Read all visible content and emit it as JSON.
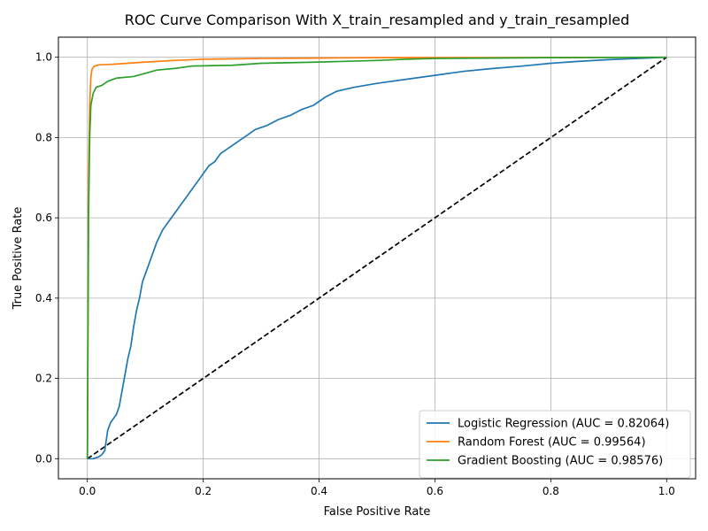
{
  "chart_data": {
    "type": "line",
    "title": "ROC Curve Comparison With X_train_resampled and y_train_resampled",
    "xlabel": "False Positive Rate",
    "ylabel": "True Positive Rate",
    "xlim": [
      -0.05,
      1.05
    ],
    "ylim": [
      -0.05,
      1.05
    ],
    "xticks": [
      0.0,
      0.2,
      0.4,
      0.6,
      0.8,
      1.0
    ],
    "yticks": [
      0.0,
      0.2,
      0.4,
      0.6,
      0.8,
      1.0
    ],
    "xtick_labels": [
      "0.0",
      "0.2",
      "0.4",
      "0.6",
      "0.8",
      "1.0"
    ],
    "ytick_labels": [
      "0.0",
      "0.2",
      "0.4",
      "0.6",
      "0.8",
      "1.0"
    ],
    "grid": true,
    "legend_position": "lower-right",
    "series": [
      {
        "name": "Logistic Regression (AUC = 0.82064)",
        "color": "#1f77b4",
        "points": [
          [
            0.0,
            0.0
          ],
          [
            0.01,
            0.0
          ],
          [
            0.02,
            0.005
          ],
          [
            0.025,
            0.01
          ],
          [
            0.03,
            0.02
          ],
          [
            0.032,
            0.04
          ],
          [
            0.035,
            0.07
          ],
          [
            0.04,
            0.09
          ],
          [
            0.045,
            0.1
          ],
          [
            0.05,
            0.11
          ],
          [
            0.055,
            0.13
          ],
          [
            0.06,
            0.17
          ],
          [
            0.065,
            0.21
          ],
          [
            0.07,
            0.25
          ],
          [
            0.075,
            0.28
          ],
          [
            0.08,
            0.33
          ],
          [
            0.085,
            0.37
          ],
          [
            0.09,
            0.4
          ],
          [
            0.095,
            0.44
          ],
          [
            0.1,
            0.46
          ],
          [
            0.105,
            0.48
          ],
          [
            0.11,
            0.5
          ],
          [
            0.115,
            0.52
          ],
          [
            0.12,
            0.54
          ],
          [
            0.13,
            0.57
          ],
          [
            0.14,
            0.59
          ],
          [
            0.15,
            0.61
          ],
          [
            0.16,
            0.63
          ],
          [
            0.17,
            0.65
          ],
          [
            0.18,
            0.67
          ],
          [
            0.19,
            0.69
          ],
          [
            0.2,
            0.71
          ],
          [
            0.21,
            0.73
          ],
          [
            0.22,
            0.74
          ],
          [
            0.23,
            0.76
          ],
          [
            0.25,
            0.78
          ],
          [
            0.27,
            0.8
          ],
          [
            0.29,
            0.82
          ],
          [
            0.31,
            0.83
          ],
          [
            0.33,
            0.845
          ],
          [
            0.35,
            0.855
          ],
          [
            0.37,
            0.87
          ],
          [
            0.39,
            0.88
          ],
          [
            0.41,
            0.9
          ],
          [
            0.43,
            0.915
          ],
          [
            0.46,
            0.925
          ],
          [
            0.5,
            0.935
          ],
          [
            0.55,
            0.945
          ],
          [
            0.6,
            0.955
          ],
          [
            0.65,
            0.965
          ],
          [
            0.7,
            0.972
          ],
          [
            0.75,
            0.978
          ],
          [
            0.8,
            0.985
          ],
          [
            0.85,
            0.99
          ],
          [
            0.9,
            0.994
          ],
          [
            0.95,
            0.997
          ],
          [
            1.0,
            1.0
          ]
        ]
      },
      {
        "name": "Random Forest (AUC = 0.99564)",
        "color": "#ff7f0e",
        "points": [
          [
            0.0,
            0.0
          ],
          [
            0.002,
            0.7
          ],
          [
            0.004,
            0.88
          ],
          [
            0.006,
            0.95
          ],
          [
            0.008,
            0.97
          ],
          [
            0.012,
            0.978
          ],
          [
            0.02,
            0.981
          ],
          [
            0.05,
            0.983
          ],
          [
            0.1,
            0.988
          ],
          [
            0.15,
            0.992
          ],
          [
            0.2,
            0.995
          ],
          [
            0.3,
            0.997
          ],
          [
            0.4,
            0.998
          ],
          [
            0.5,
            0.999
          ],
          [
            0.7,
            0.999
          ],
          [
            1.0,
            1.0
          ]
        ]
      },
      {
        "name": "Gradient Boosting (AUC = 0.98576)",
        "color": "#2ca02c",
        "points": [
          [
            0.0,
            0.0
          ],
          [
            0.002,
            0.6
          ],
          [
            0.004,
            0.8
          ],
          [
            0.006,
            0.88
          ],
          [
            0.01,
            0.91
          ],
          [
            0.015,
            0.925
          ],
          [
            0.025,
            0.93
          ],
          [
            0.035,
            0.94
          ],
          [
            0.05,
            0.948
          ],
          [
            0.08,
            0.952
          ],
          [
            0.1,
            0.96
          ],
          [
            0.12,
            0.968
          ],
          [
            0.15,
            0.972
          ],
          [
            0.18,
            0.978
          ],
          [
            0.25,
            0.98
          ],
          [
            0.3,
            0.985
          ],
          [
            0.4,
            0.988
          ],
          [
            0.5,
            0.992
          ],
          [
            0.55,
            0.995
          ],
          [
            0.6,
            0.997
          ],
          [
            0.7,
            0.998
          ],
          [
            0.8,
            0.999
          ],
          [
            1.0,
            1.0
          ]
        ]
      },
      {
        "name": "",
        "color": "#000000",
        "dashed": true,
        "in_legend": false,
        "points": [
          [
            0.0,
            0.0
          ],
          [
            1.0,
            1.0
          ]
        ]
      }
    ]
  }
}
